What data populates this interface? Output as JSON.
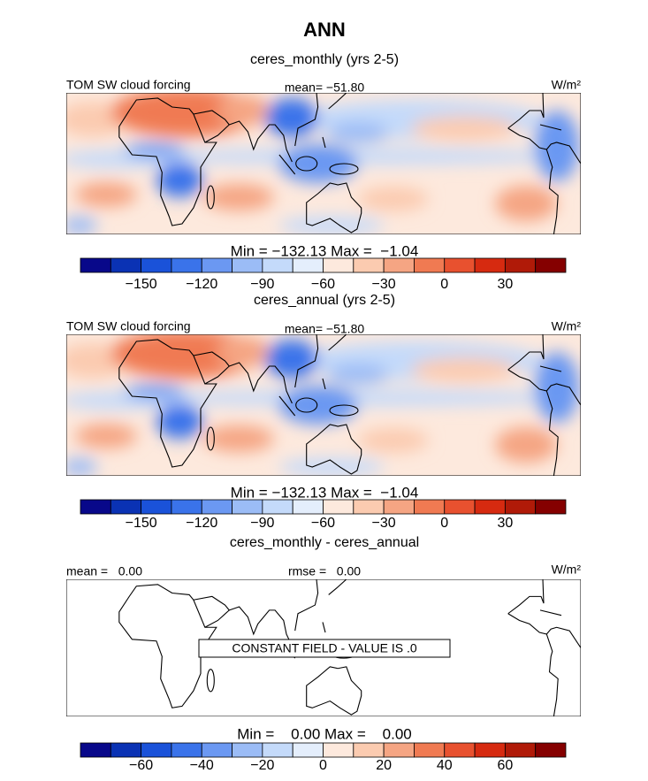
{
  "title": "ANN",
  "colorbar_colors": [
    "#08088a",
    "#0a32b4",
    "#1a52d9",
    "#3a73ea",
    "#6b98f2",
    "#9bbcf6",
    "#c4dafa",
    "#e4eefc",
    "#fde9dd",
    "#fbcbb0",
    "#f5a583",
    "#f07a52",
    "#e8512f",
    "#d62a10",
    "#b01a08",
    "#850000"
  ],
  "panels": [
    {
      "subtitle": "ceres_monthly (yrs 2-5)",
      "left_label": "TOM SW cloud forcing",
      "center_label": "mean= −51.80",
      "units": "W/m²",
      "min_max": "Min = −132.13 Max =  −1.04",
      "colorbar": {
        "lim": [
          -180,
          60
        ],
        "ticks": [
          {
            "value": -150,
            "label": "−150"
          },
          {
            "value": -120,
            "label": "−120"
          },
          {
            "value": -90,
            "label": "−90"
          },
          {
            "value": -60,
            "label": "−60"
          },
          {
            "value": -30,
            "label": "−30"
          },
          0,
          30
        ]
      }
    },
    {
      "subtitle": "ceres_annual (yrs 2-5)",
      "left_label": "TOM SW cloud forcing",
      "center_label": "mean= −51.80",
      "units": "W/m²",
      "min_max": "Min = −132.13 Max =  −1.04",
      "colorbar": {
        "lim": [
          -180,
          60
        ],
        "ticks": [
          {
            "value": -150,
            "label": "−150"
          },
          {
            "value": -120,
            "label": "−120"
          },
          {
            "value": -90,
            "label": "−90"
          },
          {
            "value": -60,
            "label": "−60"
          },
          {
            "value": -30,
            "label": "−30"
          },
          0,
          30
        ]
      }
    },
    {
      "subtitle": "ceres_monthly - ceres_annual",
      "left_label": "mean =   0.00",
      "center_label": "rmse =   0.00",
      "units": "W/m²",
      "note": "CONSTANT FIELD - VALUE IS .0",
      "min_max": "Min =    0.00 Max =    0.00",
      "colorbar": {
        "lim": [
          -80,
          80
        ],
        "ticks": [
          {
            "value": -60,
            "label": "−60"
          },
          {
            "value": -40,
            "label": "−40"
          },
          {
            "value": -20,
            "label": "−20"
          },
          0,
          20,
          40,
          60
        ]
      }
    }
  ]
}
